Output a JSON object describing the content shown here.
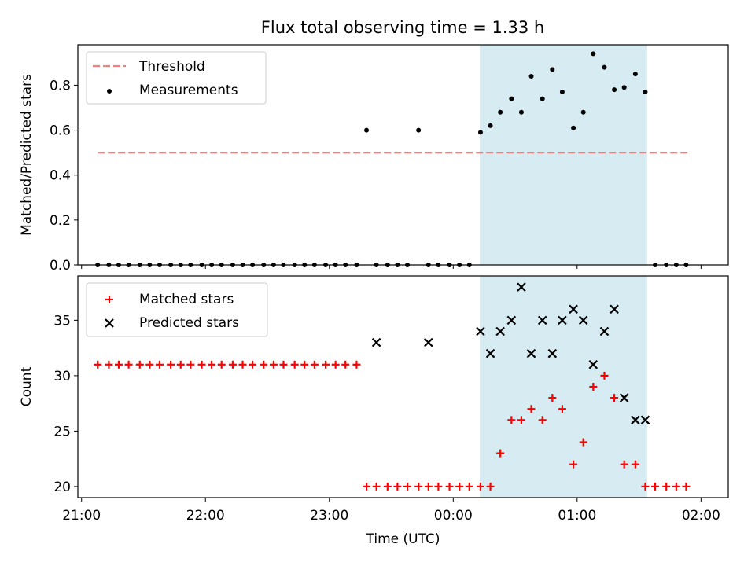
{
  "title": "Flux total observing time = 1.33 h",
  "chart_data": [
    {
      "type": "scatter",
      "ylabel": "Matched/Predicted stars",
      "ylim": [
        0,
        0.98
      ],
      "yticks": [
        0.0,
        0.2,
        0.4,
        0.6,
        0.8
      ],
      "ytick_labels": [
        "0.0",
        "0.2",
        "0.4",
        "0.6",
        "0.8"
      ],
      "xlim_hours": [
        20.97,
        26.22
      ],
      "shaded_span_hours": [
        24.22,
        25.56
      ],
      "legend": {
        "position": "top-left",
        "entries": [
          "Threshold",
          "Measurements"
        ]
      },
      "threshold": {
        "name": "Threshold",
        "value": 0.5,
        "x_range_hours": [
          21.13,
          25.9
        ],
        "color": "#f08080"
      },
      "measurements": {
        "name": "Measurements",
        "color": "#000000",
        "x_hours": [
          21.13,
          21.22,
          21.3,
          21.38,
          21.47,
          21.55,
          21.63,
          21.72,
          21.8,
          21.88,
          21.97,
          22.05,
          22.13,
          22.22,
          22.3,
          22.38,
          22.47,
          22.55,
          22.63,
          22.72,
          22.8,
          22.88,
          22.97,
          23.05,
          23.13,
          23.22,
          23.3,
          23.38,
          23.47,
          23.55,
          23.63,
          23.72,
          23.8,
          23.88,
          23.97,
          24.05,
          24.13,
          24.22,
          24.3,
          24.38,
          24.47,
          24.55,
          24.63,
          24.72,
          24.8,
          24.88,
          24.97,
          25.05,
          25.13,
          25.22,
          25.3,
          25.38,
          25.47,
          25.55,
          25.63,
          25.72,
          25.8,
          25.88
        ],
        "y": [
          0,
          0,
          0,
          0,
          0,
          0,
          0,
          0,
          0,
          0,
          0,
          0,
          0,
          0,
          0,
          0,
          0,
          0,
          0,
          0,
          0,
          0,
          0,
          0,
          0,
          0,
          0.6,
          0,
          0,
          0,
          0,
          0.6,
          0,
          0,
          0,
          0,
          0,
          0.59,
          0.62,
          0.68,
          0.74,
          0.68,
          0.84,
          0.74,
          0.87,
          0.77,
          0.61,
          0.68,
          0.94,
          0.88,
          0.78,
          0.79,
          0.85,
          0.77,
          0,
          0,
          0,
          0
        ]
      }
    },
    {
      "type": "scatter",
      "xlabel": "Time (UTC)",
      "ylabel": "Count",
      "ylim": [
        19,
        39
      ],
      "yticks": [
        20,
        25,
        30,
        35
      ],
      "ytick_labels": [
        "20",
        "25",
        "30",
        "35"
      ],
      "xticks_hours": [
        21,
        22,
        23,
        24,
        25,
        26
      ],
      "xtick_labels": [
        "21:00",
        "22:00",
        "23:00",
        "00:00",
        "01:00",
        "02:00"
      ],
      "xlim_hours": [
        20.97,
        26.22
      ],
      "shaded_span_hours": [
        24.22,
        25.56
      ],
      "legend": {
        "position": "top-left",
        "entries": [
          "Matched stars",
          "Predicted stars"
        ]
      },
      "matched": {
        "name": "Matched stars",
        "color": "#ff0000",
        "x_hours": [
          21.13,
          21.22,
          21.3,
          21.38,
          21.47,
          21.55,
          21.63,
          21.72,
          21.8,
          21.88,
          21.97,
          22.05,
          22.13,
          22.22,
          22.3,
          22.38,
          22.47,
          22.55,
          22.63,
          22.72,
          22.8,
          22.88,
          22.97,
          23.05,
          23.13,
          23.22,
          23.3,
          23.38,
          23.47,
          23.55,
          23.63,
          23.72,
          23.8,
          23.88,
          23.97,
          24.05,
          24.13,
          24.22,
          24.3,
          24.38,
          24.47,
          24.55,
          24.63,
          24.72,
          24.8,
          24.88,
          24.97,
          25.05,
          25.13,
          25.22,
          25.3,
          25.38,
          25.47,
          25.55,
          25.63,
          25.72,
          25.8,
          25.88
        ],
        "y": [
          31,
          31,
          31,
          31,
          31,
          31,
          31,
          31,
          31,
          31,
          31,
          31,
          31,
          31,
          31,
          31,
          31,
          31,
          31,
          31,
          31,
          31,
          31,
          31,
          31,
          31,
          20,
          20,
          20,
          20,
          20,
          20,
          20,
          20,
          20,
          20,
          20,
          20,
          20,
          23,
          26,
          26,
          27,
          26,
          28,
          27,
          22,
          24,
          29,
          30,
          28,
          22,
          22,
          20,
          20,
          20,
          20,
          20
        ]
      },
      "predicted": {
        "name": "Predicted stars",
        "color": "#000000",
        "x_hours": [
          23.38,
          23.8,
          24.22,
          24.3,
          24.38,
          24.47,
          24.55,
          24.63,
          24.72,
          24.8,
          24.88,
          24.97,
          25.05,
          25.13,
          25.22,
          25.3,
          25.38,
          25.47,
          25.55
        ],
        "y": [
          33,
          33,
          34,
          32,
          34,
          35,
          38,
          32,
          35,
          32,
          35,
          36,
          35,
          31,
          34,
          36,
          28,
          26,
          26
        ]
      }
    }
  ]
}
